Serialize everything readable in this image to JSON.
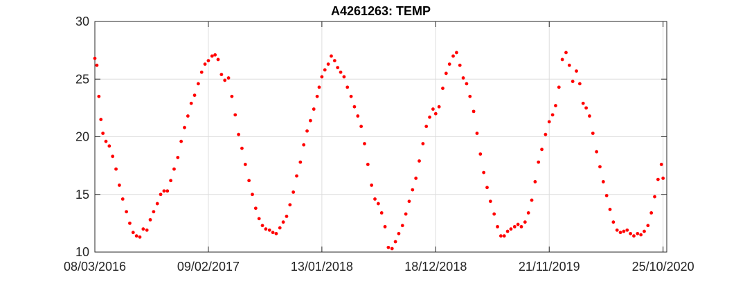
{
  "chart_data": {
    "type": "scatter",
    "title": "A4261263: TEMP",
    "xlabel": "",
    "ylabel": "",
    "xlim": [
      "2016-03-08",
      "2020-11-05"
    ],
    "ylim": [
      10,
      30
    ],
    "grid": true,
    "marker_color": "#ff0000",
    "x_ticks": [
      {
        "date": "2016-03-08",
        "label": "08/03/2016"
      },
      {
        "date": "2017-02-09",
        "label": "09/02/2017"
      },
      {
        "date": "2018-01-13",
        "label": "13/01/2018"
      },
      {
        "date": "2018-12-18",
        "label": "18/12/2018"
      },
      {
        "date": "2019-11-21",
        "label": "21/11/2019"
      },
      {
        "date": "2020-10-25",
        "label": "25/10/2020"
      }
    ],
    "y_ticks": [
      10,
      15,
      20,
      25,
      30
    ],
    "series": [
      {
        "x": [
          "2016-03-08",
          "2016-03-14",
          "2016-03-20",
          "2016-03-26",
          "2016-04-01",
          "2016-04-10",
          "2016-04-20",
          "2016-04-30",
          "2016-05-10",
          "2016-05-20",
          "2016-05-30",
          "2016-06-10",
          "2016-06-20",
          "2016-06-30",
          "2016-07-10",
          "2016-07-20",
          "2016-07-30",
          "2016-08-10",
          "2016-08-20",
          "2016-08-30",
          "2016-09-10",
          "2016-09-20",
          "2016-09-30",
          "2016-10-10",
          "2016-10-20",
          "2016-10-30",
          "2016-11-10",
          "2016-11-20",
          "2016-11-30",
          "2016-12-10",
          "2016-12-20",
          "2016-12-30",
          "2017-01-10",
          "2017-01-20",
          "2017-01-30",
          "2017-02-09",
          "2017-02-20",
          "2017-03-01",
          "2017-03-10",
          "2017-03-20",
          "2017-03-30",
          "2017-04-10",
          "2017-04-20",
          "2017-04-30",
          "2017-05-10",
          "2017-05-20",
          "2017-05-30",
          "2017-06-10",
          "2017-06-20",
          "2017-06-30",
          "2017-07-10",
          "2017-07-20",
          "2017-07-30",
          "2017-08-10",
          "2017-08-20",
          "2017-08-30",
          "2017-09-10",
          "2017-09-20",
          "2017-09-30",
          "2017-10-10",
          "2017-10-20",
          "2017-10-30",
          "2017-11-10",
          "2017-11-20",
          "2017-11-30",
          "2017-12-10",
          "2017-12-20",
          "2017-12-30",
          "2018-01-05",
          "2018-01-13",
          "2018-01-22",
          "2018-02-01",
          "2018-02-10",
          "2018-02-20",
          "2018-03-01",
          "2018-03-10",
          "2018-03-20",
          "2018-03-30",
          "2018-04-10",
          "2018-04-20",
          "2018-04-30",
          "2018-05-10",
          "2018-05-20",
          "2018-05-30",
          "2018-06-10",
          "2018-06-20",
          "2018-06-30",
          "2018-07-10",
          "2018-07-20",
          "2018-07-30",
          "2018-08-10",
          "2018-08-20",
          "2018-08-30",
          "2018-09-10",
          "2018-09-20",
          "2018-09-30",
          "2018-10-10",
          "2018-10-20",
          "2018-10-30",
          "2018-11-10",
          "2018-11-20",
          "2018-11-30",
          "2018-12-10",
          "2018-12-18",
          "2018-12-28",
          "2019-01-08",
          "2019-01-18",
          "2019-01-28",
          "2019-02-08",
          "2019-02-18",
          "2019-02-28",
          "2019-03-10",
          "2019-03-20",
          "2019-03-30",
          "2019-04-10",
          "2019-04-20",
          "2019-04-30",
          "2019-05-10",
          "2019-05-20",
          "2019-05-30",
          "2019-06-10",
          "2019-06-20",
          "2019-06-30",
          "2019-07-10",
          "2019-07-20",
          "2019-07-30",
          "2019-08-10",
          "2019-08-20",
          "2019-08-30",
          "2019-09-10",
          "2019-09-20",
          "2019-09-30",
          "2019-10-10",
          "2019-10-20",
          "2019-10-30",
          "2019-11-10",
          "2019-11-21",
          "2019-12-01",
          "2019-12-10",
          "2019-12-20",
          "2019-12-30",
          "2020-01-10",
          "2020-01-20",
          "2020-01-30",
          "2020-02-10",
          "2020-02-20",
          "2020-03-01",
          "2020-03-10",
          "2020-03-20",
          "2020-03-30",
          "2020-04-10",
          "2020-04-20",
          "2020-04-30",
          "2020-05-10",
          "2020-05-20",
          "2020-05-30",
          "2020-06-10",
          "2020-06-20",
          "2020-06-30",
          "2020-07-10",
          "2020-07-20",
          "2020-07-30",
          "2020-08-10",
          "2020-08-20",
          "2020-08-30",
          "2020-09-10",
          "2020-09-20",
          "2020-09-30",
          "2020-10-10",
          "2020-10-20",
          "2020-10-25"
        ],
        "values": [
          26.8,
          26.2,
          23.5,
          21.5,
          20.3,
          19.6,
          19.2,
          18.3,
          17.2,
          15.8,
          14.6,
          13.5,
          12.5,
          11.7,
          11.4,
          11.3,
          12.0,
          11.9,
          12.8,
          13.5,
          14.2,
          15.0,
          15.3,
          15.3,
          16.2,
          17.2,
          18.2,
          19.6,
          20.8,
          21.8,
          22.9,
          23.6,
          24.6,
          25.6,
          26.3,
          26.6,
          27.0,
          27.1,
          26.7,
          25.4,
          24.9,
          25.1,
          23.5,
          21.9,
          20.2,
          19.0,
          17.6,
          16.2,
          15.0,
          13.8,
          12.9,
          12.3,
          12.0,
          11.9,
          11.7,
          11.6,
          12.1,
          12.6,
          13.1,
          14.1,
          15.2,
          16.6,
          17.8,
          19.3,
          20.5,
          21.4,
          22.4,
          23.5,
          24.3,
          25.2,
          25.8,
          26.3,
          27.0,
          26.6,
          26.0,
          25.6,
          25.2,
          24.3,
          23.5,
          22.6,
          21.8,
          20.9,
          19.4,
          17.6,
          15.8,
          14.6,
          14.2,
          13.4,
          12.2,
          10.4,
          10.3,
          10.9,
          11.6,
          12.3,
          13.3,
          14.4,
          15.4,
          16.4,
          17.9,
          19.4,
          20.9,
          21.7,
          22.4,
          22.0,
          22.6,
          24.2,
          25.5,
          26.3,
          27.0,
          27.3,
          26.2,
          25.1,
          24.6,
          23.5,
          22.2,
          20.3,
          18.5,
          16.9,
          15.6,
          14.4,
          13.3,
          12.2,
          11.4,
          11.4,
          11.8,
          12.0,
          12.2,
          12.4,
          12.2,
          12.6,
          13.4,
          14.5,
          16.1,
          17.8,
          18.9,
          20.2,
          21.3,
          21.9,
          22.7,
          24.3,
          26.7,
          27.3,
          26.2,
          24.8,
          25.7,
          24.6,
          22.9,
          22.5,
          21.8,
          20.3,
          18.7,
          17.4,
          16.1,
          14.9,
          13.7,
          12.6,
          11.9,
          11.7,
          11.8,
          11.9,
          11.6,
          11.4,
          11.6,
          11.5,
          11.8,
          12.3,
          13.4,
          14.8,
          16.3,
          17.6,
          16.4
        ]
      }
    ]
  }
}
